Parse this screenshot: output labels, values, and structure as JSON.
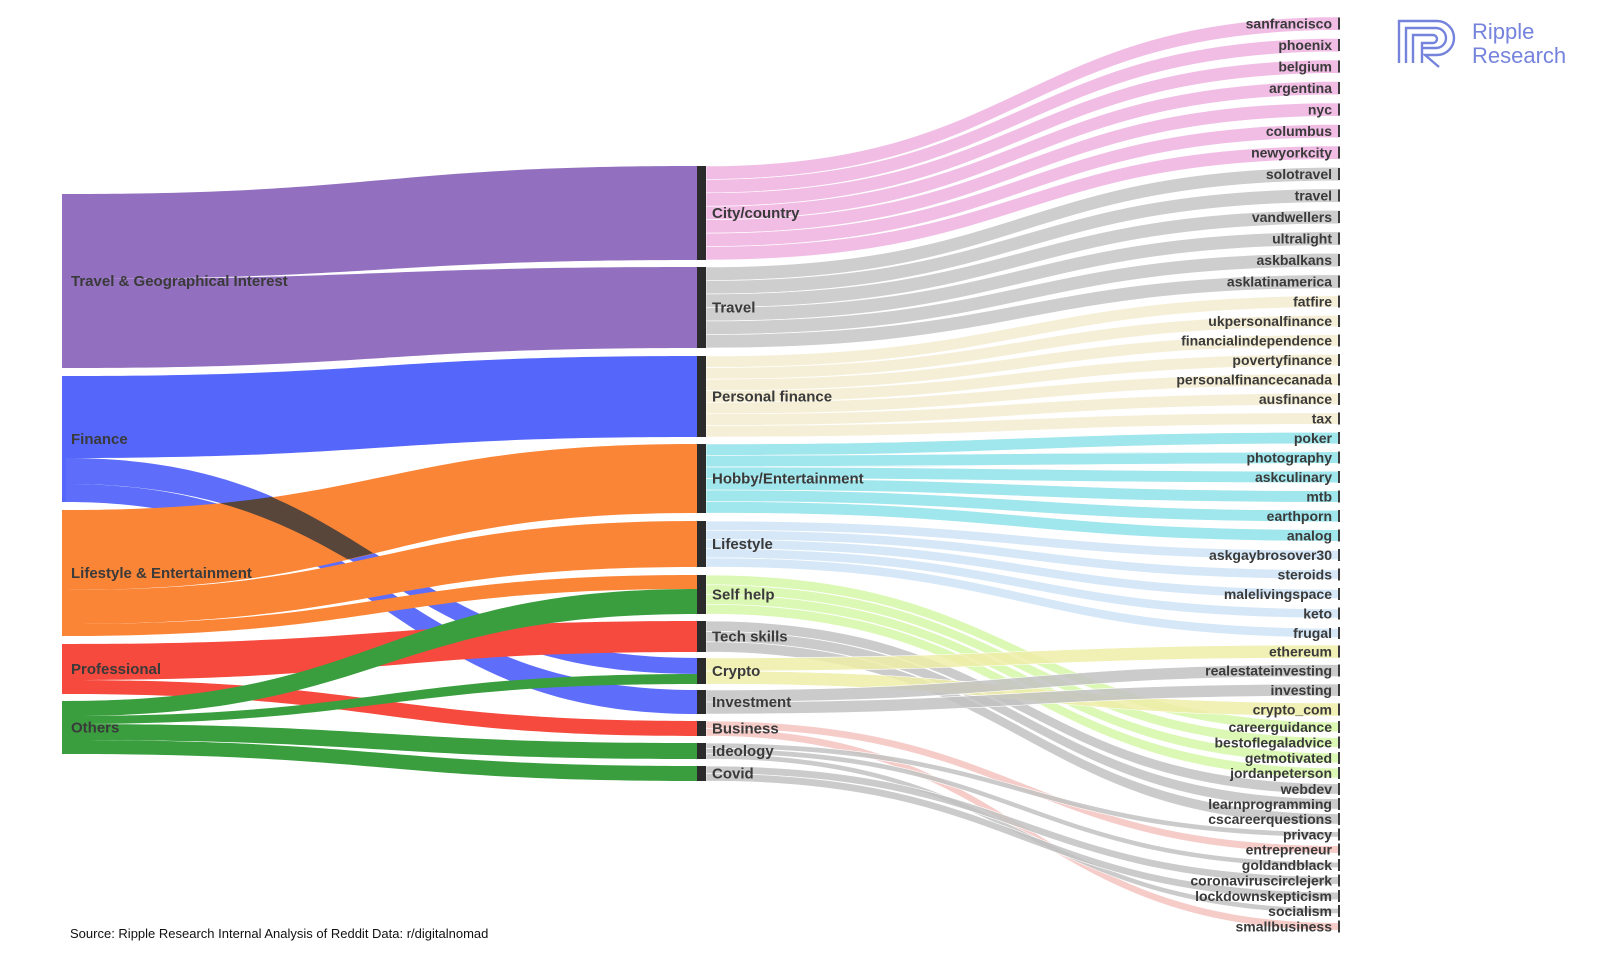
{
  "logo": {
    "line1": "Ripple",
    "line2": "Research",
    "color": "#7583dc"
  },
  "source_note": "Source: Ripple Research Internal Analysis of Reddit Data: r/digitalnomad",
  "colors": {
    "Travel & Geographical Interest": "#9370bf",
    "Finance": "#5566fb",
    "Lifestyle & Entertainment": "#fb8536",
    "Professional": "#f64a3e",
    "Others": "#3a9e3f",
    "City/country": "#eeb2e0",
    "Travel": "#c5c5c5",
    "Personal finance": "#f4ecd0",
    "Hobby/Entertainment": "#8fe2ea",
    "Lifestyle": "#cfe4f7",
    "Self help": "#d6f7a8",
    "Tech skills": "#c2c2c2",
    "Crypto": "#eeeda8",
    "Investment": "#c2c2c2",
    "Business": "#f5c3bf",
    "Ideology": "#c2c2c2",
    "Covid": "#c2c2c2"
  },
  "diagram": {
    "type": "sankey",
    "level1": [
      "Travel & Geographical Interest",
      "Finance",
      "Lifestyle & Entertainment",
      "Professional",
      "Others"
    ],
    "level2": [
      "City/country",
      "Travel",
      "Personal finance",
      "Hobby/Entertainment",
      "Lifestyle",
      "Self help",
      "Tech skills",
      "Crypto",
      "Investment",
      "Business",
      "Ideology",
      "Covid"
    ],
    "level3": [
      "sanfrancisco",
      "phoenix",
      "belgium",
      "argentina",
      "nyc",
      "columbus",
      "newyorkcity",
      "solotravel",
      "travel",
      "vandwellers",
      "ultralight",
      "askbalkans",
      "asklatinamerica",
      "fatfire",
      "ukpersonalfinance",
      "financialindependence",
      "povertyfinance",
      "personalfinancecanada",
      "ausfinance",
      "tax",
      "poker",
      "photography",
      "askculinary",
      "mtb",
      "earthporn",
      "analog",
      "askgaybrosover30",
      "steroids",
      "malelivingspace",
      "keto",
      "frugal",
      "ethereum",
      "realestateinvesting",
      "investing",
      "crypto_com",
      "careerguidance",
      "bestoflegaladvice",
      "getmotivated",
      "jordanpeterson",
      "webdev",
      "learnprogramming",
      "cscareerquestions",
      "privacy",
      "entrepreneur",
      "goldandblack",
      "coronaviruscirclejerk",
      "lockdownskepticism",
      "socialism",
      "smallbusiness"
    ],
    "links_level1_to_level2": [
      {
        "source": "Travel & Geographical Interest",
        "target": "City/country"
      },
      {
        "source": "Travel & Geographical Interest",
        "target": "Travel"
      },
      {
        "source": "Finance",
        "target": "Personal finance"
      },
      {
        "source": "Finance",
        "target": "Crypto"
      },
      {
        "source": "Finance",
        "target": "Investment"
      },
      {
        "source": "Lifestyle & Entertainment",
        "target": "Hobby/Entertainment"
      },
      {
        "source": "Lifestyle & Entertainment",
        "target": "Lifestyle"
      },
      {
        "source": "Lifestyle & Entertainment",
        "target": "Self help"
      },
      {
        "source": "Professional",
        "target": "Tech skills"
      },
      {
        "source": "Professional",
        "target": "Business"
      },
      {
        "source": "Others",
        "target": "Self help"
      },
      {
        "source": "Others",
        "target": "Crypto"
      },
      {
        "source": "Others",
        "target": "Ideology"
      },
      {
        "source": "Others",
        "target": "Covid"
      }
    ],
    "links_level2_to_level3": [
      {
        "source": "City/country",
        "targets": [
          "sanfrancisco",
          "phoenix",
          "belgium",
          "argentina",
          "nyc",
          "columbus",
          "newyorkcity"
        ]
      },
      {
        "source": "Travel",
        "targets": [
          "solotravel",
          "travel",
          "vandwellers",
          "ultralight",
          "askbalkans",
          "asklatinamerica"
        ]
      },
      {
        "source": "Personal finance",
        "targets": [
          "fatfire",
          "ukpersonalfinance",
          "financialindependence",
          "povertyfinance",
          "personalfinancecanada",
          "ausfinance",
          "tax"
        ]
      },
      {
        "source": "Hobby/Entertainment",
        "targets": [
          "poker",
          "photography",
          "askculinary",
          "mtb",
          "earthporn",
          "analog"
        ]
      },
      {
        "source": "Lifestyle",
        "targets": [
          "askgaybrosover30",
          "steroids",
          "malelivingspace",
          "keto",
          "frugal"
        ]
      },
      {
        "source": "Self help",
        "targets": [
          "careerguidance",
          "bestoflegaladvice",
          "getmotivated",
          "jordanpeterson"
        ]
      },
      {
        "source": "Tech skills",
        "targets": [
          "webdev",
          "learnprogramming",
          "cscareerquestions"
        ]
      },
      {
        "source": "Crypto",
        "targets": [
          "ethereum",
          "crypto_com"
        ]
      },
      {
        "source": "Investment",
        "targets": [
          "realestateinvesting",
          "investing"
        ]
      },
      {
        "source": "Business",
        "targets": [
          "entrepreneur",
          "smallbusiness"
        ]
      },
      {
        "source": "Ideology",
        "targets": [
          "privacy",
          "goldandblack",
          "socialism"
        ]
      },
      {
        "source": "Covid",
        "targets": [
          "coronaviruscirclejerk",
          "lockdownskepticism"
        ]
      }
    ]
  }
}
